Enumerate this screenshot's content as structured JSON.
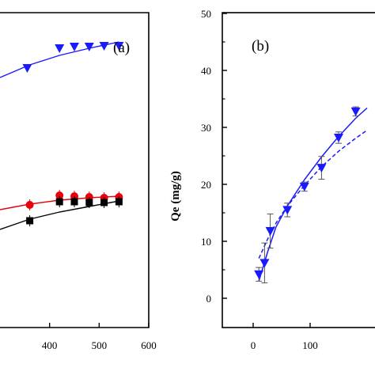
{
  "chart_data": [
    {
      "panel_label": "(a)",
      "type": "scatter",
      "xlim": [
        300,
        600
      ],
      "xticks": [
        "400",
        "500",
        "600"
      ],
      "series": [
        {
          "color": "#1a1aff",
          "marker": "triangle-down",
          "points": [
            [
              355,
              86
            ],
            [
              420,
              61
            ],
            [
              450,
              59
            ],
            [
              480,
              59
            ],
            [
              510,
              58
            ],
            [
              540,
              58
            ]
          ],
          "fit": [
            [
              300,
              98
            ],
            [
              360,
              82
            ],
            [
              420,
              70
            ],
            [
              480,
              61
            ],
            [
              540,
              53
            ]
          ]
        },
        {
          "color": "#e8000b",
          "marker": "circle",
          "points": [
            [
              360,
              259
            ],
            [
              420,
              247
            ],
            [
              450,
              248
            ],
            [
              480,
              249
            ],
            [
              510,
              250
            ],
            [
              540,
              249
            ]
          ],
          "fit": [
            [
              300,
              265
            ],
            [
              360,
              258
            ],
            [
              420,
              253
            ],
            [
              480,
              250
            ],
            [
              540,
              248
            ]
          ]
        },
        {
          "color": "#000000",
          "marker": "square",
          "points": [
            [
              360,
              279
            ],
            [
              420,
              255
            ],
            [
              450,
              255
            ],
            [
              480,
              256
            ],
            [
              510,
              256
            ],
            [
              540,
              255
            ]
          ],
          "fit": [
            [
              300,
              290
            ],
            [
              360,
              277
            ],
            [
              420,
              268
            ],
            [
              480,
              261
            ],
            [
              540,
              254
            ]
          ]
        }
      ]
    },
    {
      "panel_label": "(b)",
      "type": "scatter",
      "ylabel": "Qe (mg/g)",
      "ylim": [
        -5,
        50
      ],
      "yticks": [
        "0",
        "10",
        "20",
        "30",
        "40",
        "50"
      ],
      "xlim": [
        -50,
        200
      ],
      "xticks": [
        "0",
        "100"
      ],
      "series": [
        {
          "color": "#1a1aff",
          "marker": "triangle-down",
          "points": [
            {
              "x": 10,
              "y": 4.2,
              "err": 1.2
            },
            {
              "x": 20,
              "y": 6.2,
              "err": 3.5
            },
            {
              "x": 30,
              "y": 11.8,
              "err": 3.0
            },
            {
              "x": 60,
              "y": 15.5,
              "err": 1.2
            },
            {
              "x": 90,
              "y": 19.6,
              "err": 0.8
            },
            {
              "x": 120,
              "y": 22.9,
              "err": 2.0
            },
            {
              "x": 150,
              "y": 28.2,
              "err": 1.0
            },
            {
              "x": 180,
              "y": 32.8,
              "err": 0.8
            }
          ],
          "fit_solid": [
            [
              10,
              3.0
            ],
            [
              25,
              8.0
            ],
            [
              40,
              12.5
            ],
            [
              60,
              16.2
            ],
            [
              90,
              20.8
            ],
            [
              120,
              24.8
            ],
            [
              150,
              28.4
            ],
            [
              180,
              31.6
            ],
            [
              200,
              33.4
            ]
          ],
          "fit_dashed": [
            [
              10,
              7.0
            ],
            [
              25,
              10.3
            ],
            [
              40,
              13.2
            ],
            [
              60,
              16.2
            ],
            [
              90,
              19.8
            ],
            [
              120,
              23.1
            ],
            [
              150,
              25.8
            ],
            [
              180,
              28.1
            ],
            [
              200,
              29.5
            ]
          ]
        }
      ]
    }
  ]
}
